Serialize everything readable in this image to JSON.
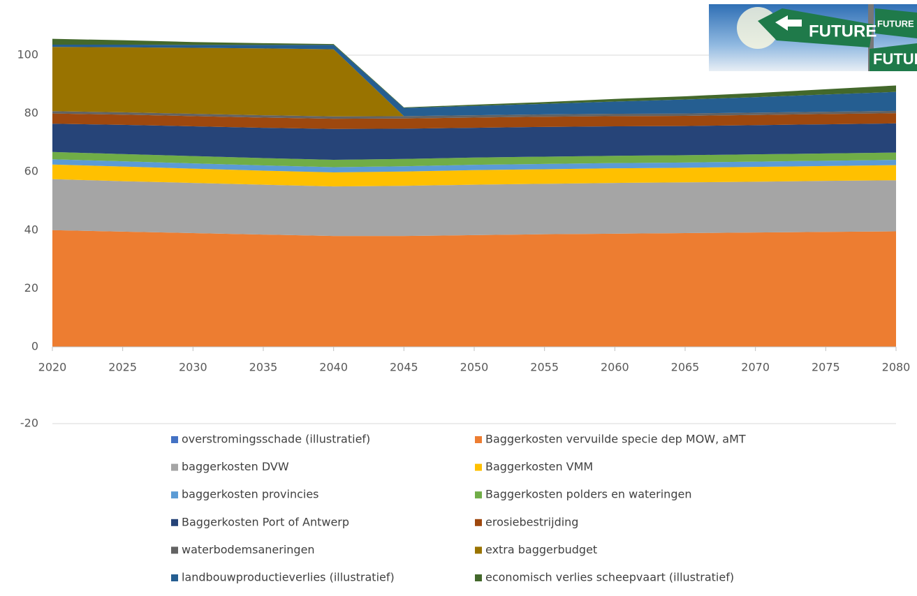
{
  "chart_data": {
    "type": "stacked_area",
    "x": [
      2020,
      2025,
      2030,
      2035,
      2040,
      2045,
      2050,
      2055,
      2060,
      2065,
      2070,
      2075,
      2080
    ],
    "xlim": [
      2020,
      2080
    ],
    "xticks": [
      2020,
      2025,
      2030,
      2035,
      2040,
      2045,
      2050,
      2055,
      2060,
      2065,
      2070,
      2075,
      2080
    ],
    "ylim": [
      -20,
      106
    ],
    "yticks": [
      -20,
      0,
      20,
      40,
      60,
      80,
      100
    ],
    "grid": true,
    "legend": "bottom",
    "series": [
      {
        "name": "overstromingsschade (illustratief)",
        "color": "#4472c4",
        "values": [
          0,
          0,
          0,
          0,
          0,
          0,
          0,
          0,
          0,
          0,
          0,
          0,
          0
        ]
      },
      {
        "name": "Baggerkosten vervuilde specie dep MOW, aMT",
        "color": "#ed7d31",
        "values": [
          40,
          39.5,
          39,
          38.5,
          38,
          38,
          38.3,
          38.6,
          38.8,
          39,
          39.2,
          39.4,
          39.6
        ]
      },
      {
        "name": "baggerkosten DVW",
        "color": "#a5a5a5",
        "values": [
          17.5,
          17.3,
          17.2,
          17.1,
          17,
          17.2,
          17.3,
          17.3,
          17.4,
          17.4,
          17.4,
          17.5,
          17.5
        ]
      },
      {
        "name": "Baggerkosten VMM",
        "color": "#ffc000",
        "values": [
          5,
          5,
          4.9,
          4.8,
          4.8,
          4.9,
          5,
          5,
          5,
          5,
          5.1,
          5.1,
          5.2
        ]
      },
      {
        "name": "baggerkosten provincies",
        "color": "#5b9bd5",
        "values": [
          1.8,
          1.8,
          1.8,
          1.8,
          1.8,
          1.8,
          1.8,
          1.8,
          1.8,
          1.8,
          1.8,
          1.8,
          1.8
        ]
      },
      {
        "name": "Baggerkosten polders en wateringen",
        "color": "#70ad47",
        "values": [
          2.5,
          2.5,
          2.5,
          2.5,
          2.5,
          2.5,
          2.5,
          2.5,
          2.5,
          2.5,
          2.5,
          2.5,
          2.5
        ]
      },
      {
        "name": "Baggerkosten Port of Antwerp",
        "color": "#264478",
        "values": [
          9.7,
          10,
          10.2,
          10.4,
          10.6,
          10.4,
          10.2,
          10.2,
          10.1,
          10,
          10,
          10,
          10
        ]
      },
      {
        "name": "erosiebestrijding",
        "color": "#9e480e",
        "values": [
          3.5,
          3.5,
          3.5,
          3.5,
          3.5,
          3.5,
          3.5,
          3.5,
          3.5,
          3.5,
          3.5,
          3.5,
          3.5
        ]
      },
      {
        "name": "waterbodemsaneringen",
        "color": "#636363",
        "values": [
          0.8,
          0.8,
          0.8,
          0.8,
          0.8,
          0.8,
          0.8,
          0.8,
          0.8,
          0.8,
          0.8,
          0.8,
          0.8
        ]
      },
      {
        "name": "extra baggerbudget",
        "color": "#997300",
        "values": [
          22,
          22.3,
          22.6,
          22.9,
          23,
          0,
          0,
          0,
          0,
          0,
          0,
          0,
          0
        ]
      },
      {
        "name": "landbouwproductieverlies (illustratief)",
        "color": "#255e91",
        "values": [
          0.8,
          0.9,
          1,
          1.2,
          1.5,
          2.8,
          3.2,
          3.6,
          4.2,
          4.8,
          5.3,
          5.9,
          6.5
        ]
      },
      {
        "name": "economisch verlies scheepvaart (illustratief)",
        "color": "#43682b",
        "values": [
          2,
          1.5,
          1,
          0.6,
          0.3,
          0.2,
          0.4,
          0.6,
          0.9,
          1.1,
          1.4,
          1.8,
          2.2
        ]
      }
    ]
  },
  "image": {
    "signs": [
      "FUTURE",
      "FUTURE",
      "FUTUR"
    ]
  }
}
